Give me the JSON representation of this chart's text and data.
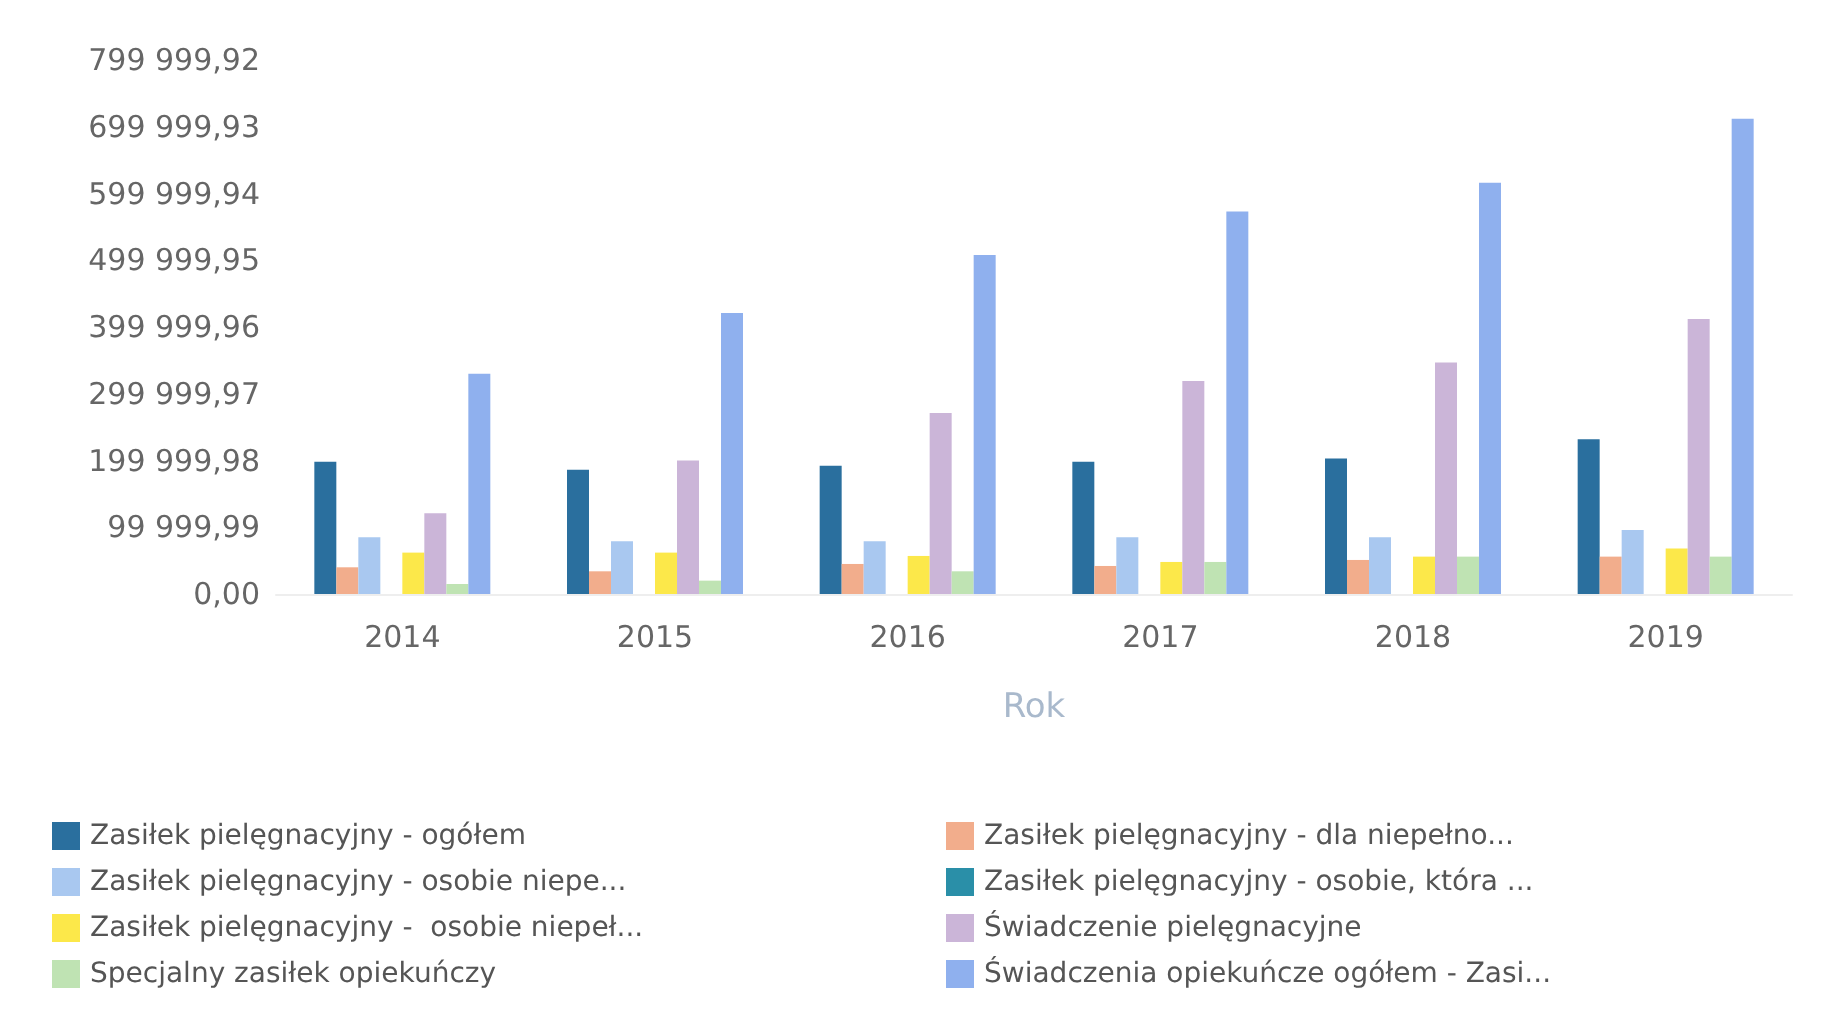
{
  "chart_data": {
    "type": "bar",
    "xlabel": "Rok",
    "categories": [
      "2014",
      "2015",
      "2016",
      "2017",
      "2018",
      "2019"
    ],
    "series": [
      {
        "name": "Zasiłek pielęgnacyjny - ogółem",
        "color": "#2a6f9e",
        "values": [
          198000,
          186000,
          192000,
          198000,
          203000,
          232000
        ]
      },
      {
        "name": "Zasiłek pielęgnacyjny - dla niepełno...",
        "color": "#f2ad8c",
        "values": [
          40000,
          34000,
          45000,
          42000,
          51000,
          56000
        ]
      },
      {
        "name": "Zasiłek pielęgnacyjny - osobie niepe...",
        "color": "#a9c8f0",
        "values": [
          85000,
          79000,
          79000,
          85000,
          85000,
          96000
        ]
      },
      {
        "name": "Zasiłek pielęgnacyjny - osobie, która ...",
        "color": "#2a8fa8",
        "values": [
          0,
          0,
          0,
          0,
          0,
          0
        ]
      },
      {
        "name": "Zasiłek pielęgnacyjny -  osobie niepeł...",
        "color": "#fce84a",
        "values": [
          62000,
          62000,
          57000,
          48000,
          56000,
          68000
        ]
      },
      {
        "name": "Świadczenie pielęgnacyjne",
        "color": "#cbb5d8",
        "values": [
          121000,
          200000,
          271000,
          319000,
          347000,
          412000
        ]
      },
      {
        "name": "Specjalny zasiłek opiekuńczy",
        "color": "#bfe3b3",
        "values": [
          15000,
          20000,
          34000,
          48000,
          56000,
          56000
        ]
      },
      {
        "name": "Świadczenia opiekuńcze ogółem - Zasi...",
        "color": "#8fb0ee",
        "values": [
          330000,
          421000,
          508000,
          573000,
          616000,
          712000
        ]
      }
    ],
    "ylim": [
      0,
      799999.92
    ],
    "yticks": [
      {
        "value": 0,
        "label": "0,00"
      },
      {
        "value": 99999.99,
        "label": "99 999,99"
      },
      {
        "value": 199999.98,
        "label": "199 999,98"
      },
      {
        "value": 299999.97,
        "label": "299 999,97"
      },
      {
        "value": 399999.96,
        "label": "399 999,96"
      },
      {
        "value": 499999.95,
        "label": "499 999,95"
      },
      {
        "value": 599999.94,
        "label": "599 999,94"
      },
      {
        "value": 699999.93,
        "label": "699 999,93"
      },
      {
        "value": 799999.92,
        "label": "799 999,92"
      }
    ],
    "grid": false,
    "legend": "bottom"
  }
}
